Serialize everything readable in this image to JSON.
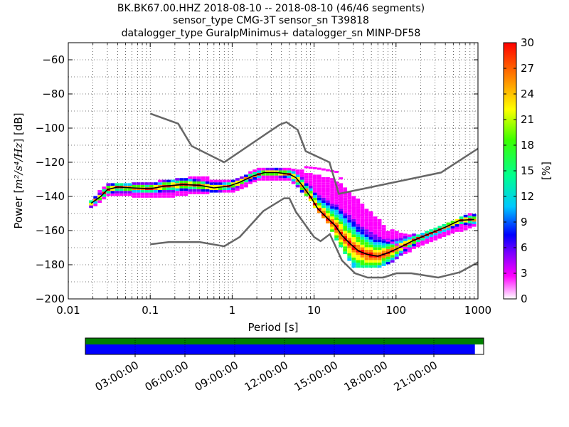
{
  "title_lines": [
    "BK.BK67.00.HHZ   2018-08-10 -- 2018-08-10  (46/46 segments)",
    "sensor_type CMG-3T sensor_sn T39818",
    "datalogger_type GuralpMinimus+ datalogger_sn MINP-DF58"
  ],
  "chart_data": {
    "type": "heatmap",
    "xlabel": "Period [s]",
    "ylabel_prefix": "Power [",
    "ylabel_math": "m²/s⁴/Hz",
    "ylabel_suffix": "] [dB]",
    "xscale": "log",
    "xlim": [
      0.01,
      1000
    ],
    "ylim": [
      -200,
      -50
    ],
    "x_ticks": [
      0.01,
      0.1,
      1,
      10,
      100,
      1000
    ],
    "x_tick_labels": [
      "0.01",
      "0.1",
      "1",
      "10",
      "100",
      "1000"
    ],
    "y_ticks": [
      -60,
      -80,
      -100,
      -120,
      -140,
      -160,
      -180,
      -200
    ],
    "grid": true,
    "colorbar": {
      "label": "[%]",
      "range": [
        0,
        30
      ],
      "ticks": [
        0,
        3,
        6,
        9,
        12,
        15,
        18,
        21,
        24,
        27,
        30
      ],
      "colors": [
        "#ffffff",
        "#ff00ff",
        "#7b00ff",
        "#0000ff",
        "#00c8ff",
        "#00ff90",
        "#3cff00",
        "#ffff00",
        "#ff8800",
        "#ff0000"
      ]
    },
    "nhnm": [
      [
        0.1,
        -91.5
      ],
      [
        0.22,
        -97.4
      ],
      [
        0.32,
        -110.5
      ],
      [
        0.8,
        -120
      ],
      [
        3.8,
        -98
      ],
      [
        4.6,
        -96.5
      ],
      [
        6.3,
        -101
      ],
      [
        7.9,
        -113.5
      ],
      [
        15.4,
        -120
      ],
      [
        20,
        -138.5
      ],
      [
        354.8,
        -126
      ],
      [
        1000,
        -112
      ]
    ],
    "nlnm": [
      [
        0.1,
        -168
      ],
      [
        0.17,
        -166.7
      ],
      [
        0.4,
        -166.7
      ],
      [
        0.8,
        -169.2
      ],
      [
        1.24,
        -163.7
      ],
      [
        2.4,
        -148.6
      ],
      [
        4.3,
        -141.1
      ],
      [
        5,
        -141.1
      ],
      [
        6,
        -149
      ],
      [
        10,
        -163.8
      ],
      [
        12,
        -166.2
      ],
      [
        15.6,
        -162.1
      ],
      [
        21.9,
        -177.5
      ],
      [
        31.6,
        -185
      ],
      [
        45,
        -187.5
      ],
      [
        70,
        -187.5
      ],
      [
        101,
        -185
      ],
      [
        154,
        -185
      ],
      [
        328,
        -187.5
      ],
      [
        600,
        -184.4
      ],
      [
        1000,
        -178.6
      ]
    ],
    "median_psd": [
      [
        0.019,
        -144
      ],
      [
        0.025,
        -140
      ],
      [
        0.03,
        -136
      ],
      [
        0.04,
        -134.5
      ],
      [
        0.06,
        -135
      ],
      [
        0.1,
        -135.5
      ],
      [
        0.15,
        -134
      ],
      [
        0.25,
        -133
      ],
      [
        0.4,
        -133.5
      ],
      [
        0.6,
        -135
      ],
      [
        0.9,
        -134
      ],
      [
        1.2,
        -132
      ],
      [
        1.8,
        -128
      ],
      [
        2.5,
        -126
      ],
      [
        3.5,
        -126
      ],
      [
        5,
        -127
      ],
      [
        6,
        -129
      ],
      [
        7,
        -133
      ],
      [
        9,
        -140
      ],
      [
        11,
        -147
      ],
      [
        14,
        -152
      ],
      [
        18,
        -157
      ],
      [
        22,
        -163
      ],
      [
        28,
        -168
      ],
      [
        35,
        -172
      ],
      [
        45,
        -174
      ],
      [
        60,
        -175
      ],
      [
        80,
        -173
      ],
      [
        110,
        -170
      ],
      [
        160,
        -166
      ],
      [
        250,
        -162
      ],
      [
        400,
        -158
      ],
      [
        600,
        -154
      ],
      [
        900,
        -153.5
      ]
    ],
    "psd_upper_spread": [
      [
        0.02,
        -142
      ],
      [
        0.03,
        -132
      ],
      [
        0.06,
        -132
      ],
      [
        0.1,
        -133
      ],
      [
        0.2,
        -130
      ],
      [
        0.3,
        -129
      ],
      [
        0.5,
        -130
      ],
      [
        1,
        -131
      ],
      [
        2,
        -125
      ],
      [
        5,
        -124
      ],
      [
        8,
        -126
      ],
      [
        10,
        -128
      ],
      [
        15,
        -130
      ],
      [
        20,
        -132
      ],
      [
        30,
        -140
      ],
      [
        50,
        -150
      ],
      [
        80,
        -160
      ],
      [
        120,
        -162
      ],
      [
        200,
        -162
      ],
      [
        400,
        -156
      ],
      [
        900,
        -150
      ]
    ],
    "psd_lower_spread": [
      [
        0.02,
        -146
      ],
      [
        0.03,
        -139
      ],
      [
        0.06,
        -139
      ],
      [
        0.1,
        -140
      ],
      [
        0.2,
        -139
      ],
      [
        0.3,
        -138
      ],
      [
        0.5,
        -137
      ],
      [
        1,
        -137
      ],
      [
        2,
        -130
      ],
      [
        5,
        -130
      ],
      [
        8,
        -138
      ],
      [
        10,
        -145
      ],
      [
        15,
        -155
      ],
      [
        20,
        -167
      ],
      [
        30,
        -180
      ],
      [
        50,
        -181
      ],
      [
        80,
        -179
      ],
      [
        120,
        -173
      ],
      [
        200,
        -168
      ],
      [
        400,
        -162
      ],
      [
        900,
        -157
      ]
    ],
    "psd_outlier_branch": [
      [
        8,
        -123
      ],
      [
        12,
        -124
      ],
      [
        20,
        -126
      ],
      [
        25,
        -140
      ],
      [
        35,
        -152
      ],
      [
        50,
        -160
      ],
      [
        80,
        -166
      ],
      [
        120,
        -170
      ],
      [
        150,
        -171
      ]
    ],
    "timeline": {
      "tick_labels": [
        "03:00:00",
        "06:00:00",
        "09:00:00",
        "12:00:00",
        "15:00:00",
        "18:00:00",
        "21:00:00"
      ],
      "data_coverage_color": "#008000",
      "processed_color": "#0000ff",
      "processed_fraction": 0.978
    }
  }
}
